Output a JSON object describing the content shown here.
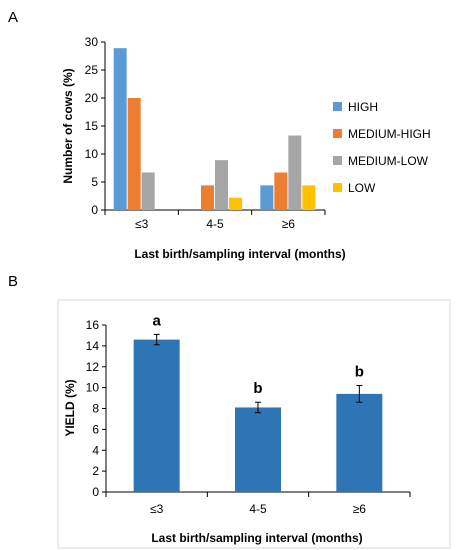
{
  "chart_data": [
    {
      "panel_label": "A",
      "type": "bar",
      "categories": [
        "≤3",
        "4-5",
        "≥6"
      ],
      "series": [
        {
          "name": "HIGH",
          "color": "#5b9bd5",
          "values": [
            28.9,
            0,
            4.4
          ]
        },
        {
          "name": "MEDIUM-HIGH",
          "color": "#ed7d31",
          "values": [
            20,
            4.4,
            6.7
          ]
        },
        {
          "name": "MEDIUM-LOW",
          "color": "#a5a5a5",
          "values": [
            6.7,
            8.9,
            13.3
          ]
        },
        {
          "name": "LOW",
          "color": "#ffc000",
          "values": [
            0,
            2.2,
            4.4
          ]
        }
      ],
      "xlabel": "Last birth/sampling interval (months)",
      "ylabel": "Number of cows (%)",
      "ylim": [
        0,
        30
      ],
      "yticks": [
        0,
        5,
        10,
        15,
        20,
        25,
        30
      ],
      "legend": "right"
    },
    {
      "panel_label": "B",
      "type": "bar",
      "categories": [
        "≤3",
        "4-5",
        "≥6"
      ],
      "series": [
        {
          "color": "#2e75b6",
          "values": [
            14.6,
            8.1,
            9.4
          ],
          "errors": [
            0.5,
            0.5,
            0.8
          ]
        }
      ],
      "significance": [
        "a",
        "b",
        "b"
      ],
      "xlabel": "Last birth/sampling interval (months)",
      "ylabel": "YIELD (%)",
      "ylim": [
        0,
        16
      ],
      "yticks": [
        0,
        2,
        4,
        6,
        8,
        10,
        12,
        14,
        16
      ],
      "grid": false
    }
  ]
}
